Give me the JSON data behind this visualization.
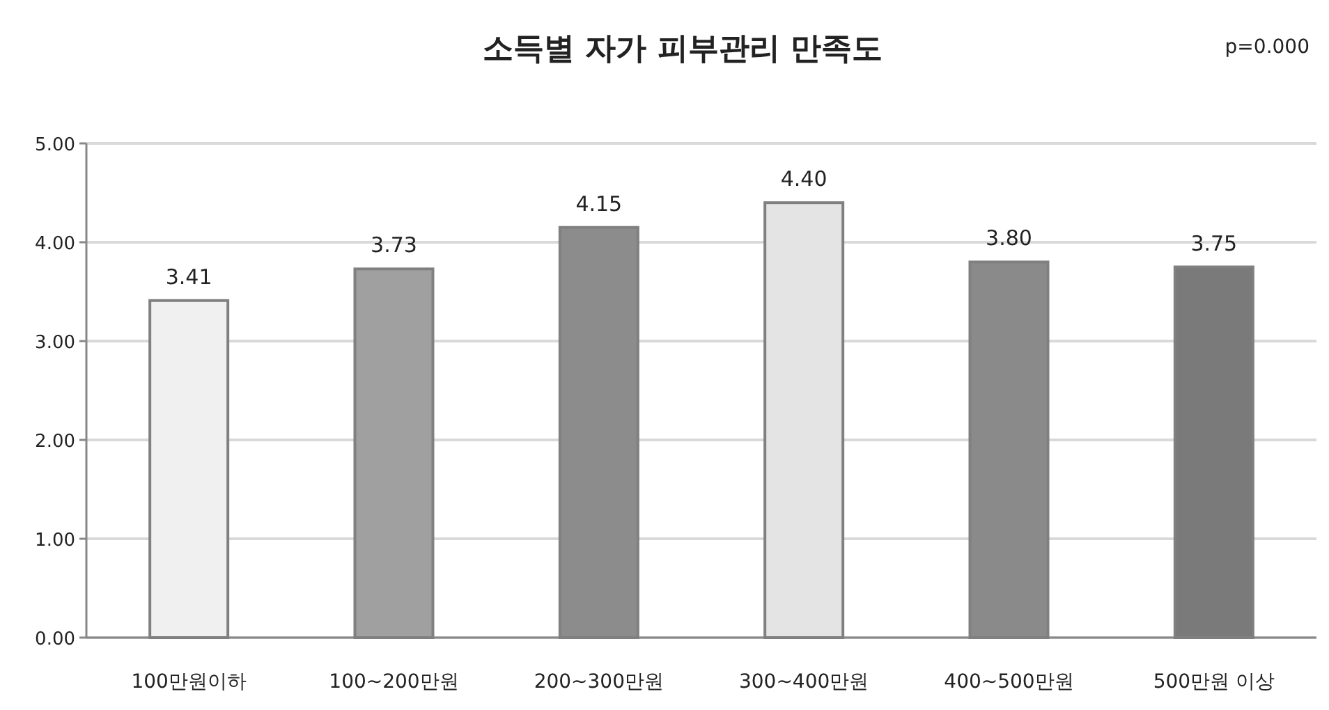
{
  "chart_data": {
    "type": "bar",
    "title": "소득별 자가 피부관리 만족도",
    "annotations": [
      "p=0.000"
    ],
    "categories": [
      "100만원이하",
      "100~200만원",
      "200~300만원",
      "300~400만원",
      "400~500만원",
      "500만원 이상"
    ],
    "values": [
      3.41,
      3.73,
      4.15,
      4.4,
      3.8,
      3.75
    ],
    "value_labels": [
      "3.41",
      "3.73",
      "4.15",
      "4.40",
      "3.80",
      "3.75"
    ],
    "colors": [
      "#f0f0f0",
      "#a0a0a0",
      "#8c8c8c",
      "#e4e4e4",
      "#8a8a8a",
      "#7a7a7a"
    ],
    "ylim": [
      0,
      5
    ],
    "yticks": [
      {
        "value": 0,
        "label": "0.00"
      },
      {
        "value": 1,
        "label": "1.00"
      },
      {
        "value": 2,
        "label": "2.00"
      },
      {
        "value": 3,
        "label": "3.00"
      },
      {
        "value": 4,
        "label": "4.00"
      },
      {
        "value": 5,
        "label": "5.00"
      }
    ],
    "grid": "y"
  }
}
